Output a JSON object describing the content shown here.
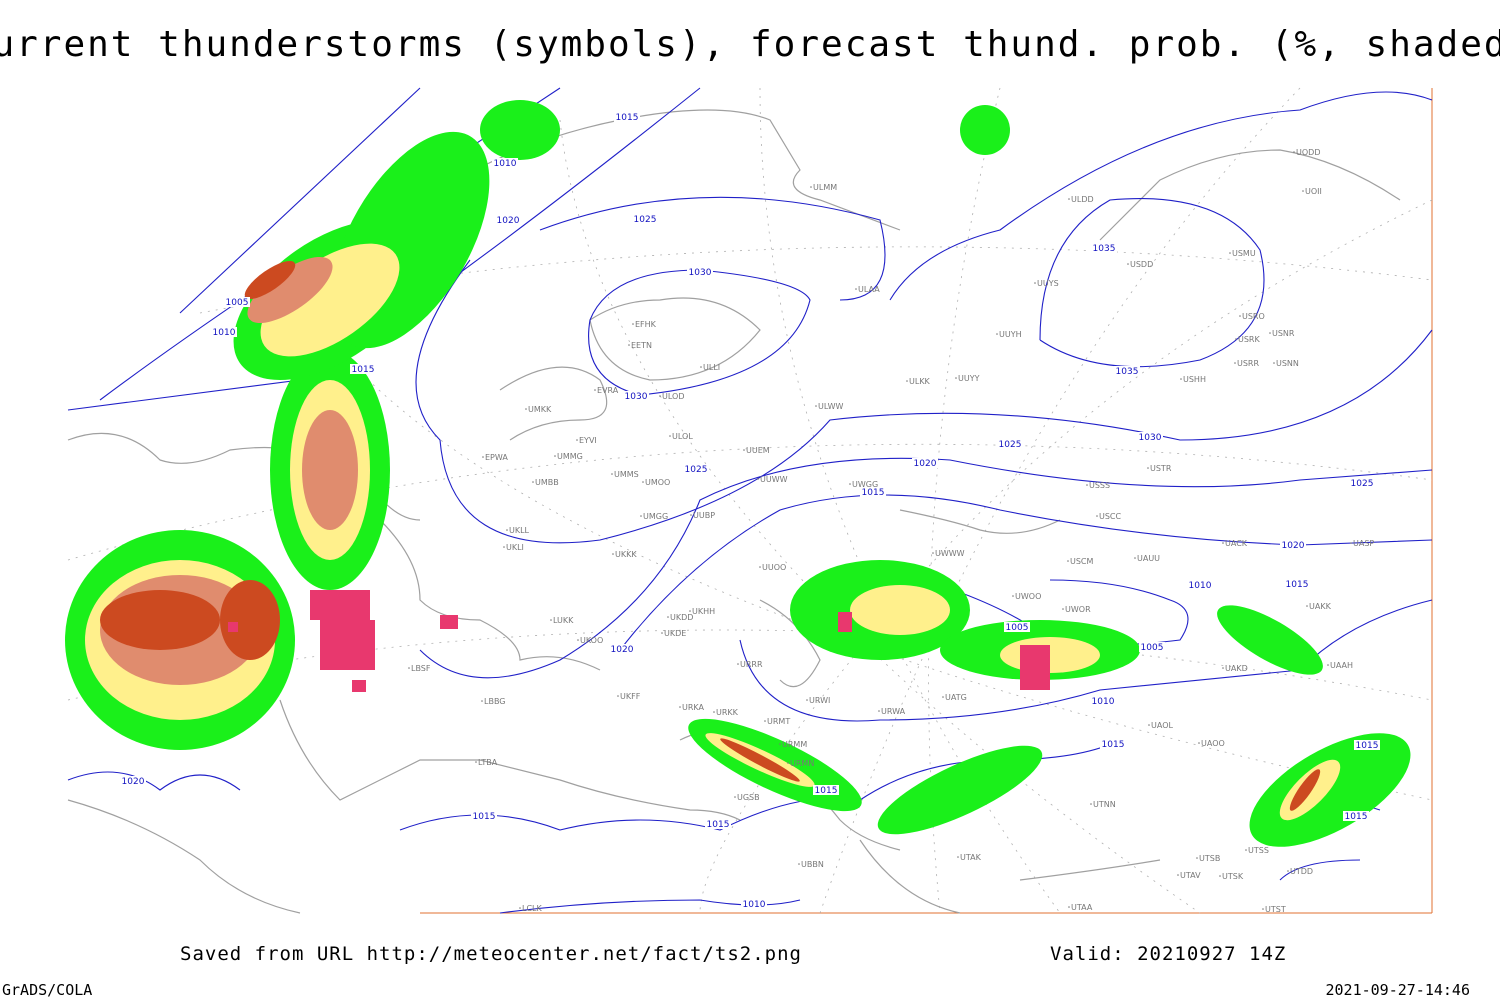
{
  "title": "Current thunderstorms (symbols), forecast thund. prob. (%, shaded)",
  "footer": {
    "saved": "Saved from URL http://meteocenter.net/fact/ts2.png",
    "valid": "Valid: 20210927 14Z",
    "software": "GrADS/COLA",
    "timestamp": "2021-09-27-14:46"
  },
  "isobar_labels": [
    1015,
    1010,
    1020,
    1025,
    1030,
    1005,
    1010,
    1015,
    1030,
    1025,
    1020,
    1025,
    1030,
    1035,
    1035,
    1015,
    1020,
    1025,
    1015,
    1010,
    1005,
    1005,
    1010,
    1015,
    1015,
    1015,
    1015,
    1015,
    1015,
    1020,
    1020,
    1010
  ],
  "stations": [
    "ULMM",
    "ULDD",
    "UODD",
    "UOII",
    "USDD",
    "USMU",
    "UUYS",
    "ULAA",
    "UUYH",
    "USRO",
    "USRK",
    "USNR",
    "USRR",
    "USNN",
    "USHH",
    "EFHK",
    "EETN",
    "ULLI",
    "ULKK",
    "UUYY",
    "EVRA",
    "ULOD",
    "UMKK",
    "ULWW",
    "EYVI",
    "ULOL",
    "UMMG",
    "EPWA",
    "UUEM",
    "USTR",
    "UMMS",
    "UMOO",
    "UUWW",
    "UMBB",
    "UWGG",
    "USSS",
    "UMGG",
    "UUBP",
    "USCC",
    "UKLL",
    "UKLI",
    "UACK",
    "UASP",
    "UKKK",
    "UUOO",
    "UWWW",
    "USCM",
    "UAUU",
    "UWOO",
    "UWOR",
    "UAKK",
    "LUKK",
    "UKDD",
    "UKHH",
    "UKDE",
    "UKOO",
    "URRR",
    "LBSF",
    "UAKD",
    "UAAH",
    "LBBG",
    "UKFF",
    "URKA",
    "URKK",
    "URWI",
    "UATG",
    "URWA",
    "UAOL",
    "URMT",
    "URMM",
    "UAOO",
    "URMN",
    "UGSB",
    "UTNN",
    "LTBA",
    "UBBN",
    "UTAK",
    "UTSB",
    "UTSS",
    "UTAV",
    "UTSK",
    "UTDD",
    "UTAA",
    "LCLK",
    "UTST"
  ]
}
